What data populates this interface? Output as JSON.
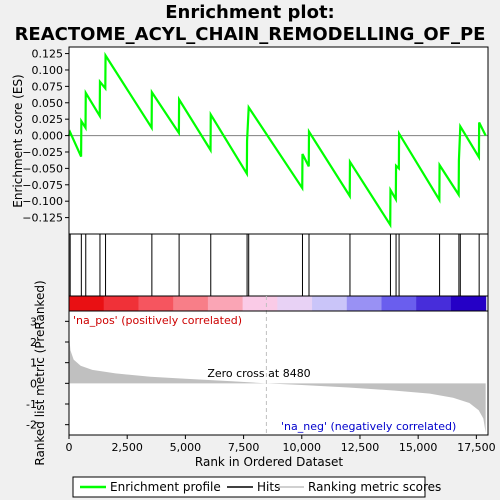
{
  "chart_data": {
    "type": "line",
    "title_line1": "Enrichment plot:",
    "title_line2": "REACTOME_ACYL_CHAIN_REMODELLING_OF_PE",
    "x_label": "Rank in Ordered Dataset",
    "es_ylabel": "Enrichment score (ES)",
    "metric_ylabel": "Ranked list metric (PreRanked)",
    "xlim": [
      0,
      18000
    ],
    "es_ylim": [
      -0.15,
      0.135
    ],
    "metric_ylim": [
      -2.5,
      3.5
    ],
    "x_ticks": [
      0,
      2500,
      5000,
      7500,
      10000,
      12500,
      15000,
      17500
    ],
    "x_tick_labels": [
      "0",
      "2,500",
      "5,000",
      "7,500",
      "10,000",
      "12,500",
      "15,000",
      "17,500"
    ],
    "es_ticks": [
      -0.125,
      -0.1,
      -0.075,
      -0.05,
      -0.025,
      0,
      0.025,
      0.05,
      0.075,
      0.1,
      0.125
    ],
    "es_tick_labels": [
      "−0.125",
      "−0.100",
      "−0.075",
      "−0.050",
      "−0.025",
      "0.000",
      "0.025",
      "0.050",
      "0.075",
      "0.100",
      "0.125"
    ],
    "metric_ticks": [
      -2,
      -1,
      0,
      1,
      2,
      3
    ],
    "metric_tick_labels": [
      "-2",
      "-1",
      "0",
      "1",
      "2",
      "3"
    ],
    "n_genes": 17900,
    "zero_cross_rank": 8480,
    "zero_cross_text": "Zero cross at 8480",
    "pos_label": "'na_pos' (positively correlated)",
    "neg_label": "'na_neg' (negatively correlated)",
    "hits": [
      50,
      530,
      720,
      1330,
      1570,
      3560,
      4730,
      6090,
      7650,
      7720,
      10030,
      10310,
      12070,
      13810,
      14050,
      14180,
      15920,
      16750,
      16810,
      17620
    ],
    "es_series": [
      {
        "x": 0,
        "y": 0.0
      },
      {
        "x": 50,
        "y": 0.005
      },
      {
        "x": 520,
        "y": -0.032
      },
      {
        "x": 530,
        "y": 0.022
      },
      {
        "x": 710,
        "y": 0.012
      },
      {
        "x": 720,
        "y": 0.065
      },
      {
        "x": 1320,
        "y": 0.03
      },
      {
        "x": 1330,
        "y": 0.082
      },
      {
        "x": 1560,
        "y": 0.072
      },
      {
        "x": 1570,
        "y": 0.122
      },
      {
        "x": 3550,
        "y": 0.012
      },
      {
        "x": 3560,
        "y": 0.066
      },
      {
        "x": 4720,
        "y": 0.004
      },
      {
        "x": 4730,
        "y": 0.055
      },
      {
        "x": 6080,
        "y": -0.022
      },
      {
        "x": 6090,
        "y": 0.032
      },
      {
        "x": 7640,
        "y": -0.058
      },
      {
        "x": 7650,
        "y": -0.008
      },
      {
        "x": 7720,
        "y": 0.043
      },
      {
        "x": 10020,
        "y": -0.08
      },
      {
        "x": 10030,
        "y": -0.028
      },
      {
        "x": 10300,
        "y": -0.047
      },
      {
        "x": 10310,
        "y": 0.006
      },
      {
        "x": 12060,
        "y": -0.092
      },
      {
        "x": 12070,
        "y": -0.04
      },
      {
        "x": 13800,
        "y": -0.136
      },
      {
        "x": 13810,
        "y": -0.083
      },
      {
        "x": 14040,
        "y": -0.097
      },
      {
        "x": 14050,
        "y": -0.046
      },
      {
        "x": 14170,
        "y": -0.05
      },
      {
        "x": 14180,
        "y": 0.003
      },
      {
        "x": 15910,
        "y": -0.098
      },
      {
        "x": 15920,
        "y": -0.045
      },
      {
        "x": 16740,
        "y": -0.09
      },
      {
        "x": 16750,
        "y": -0.038
      },
      {
        "x": 16810,
        "y": 0.014
      },
      {
        "x": 17610,
        "y": -0.033
      },
      {
        "x": 17620,
        "y": 0.02
      },
      {
        "x": 17900,
        "y": 0.0
      }
    ],
    "metric_curve": [
      {
        "x": 0,
        "y": 2.4
      },
      {
        "x": 60,
        "y": 1.6
      },
      {
        "x": 200,
        "y": 1.15
      },
      {
        "x": 500,
        "y": 0.85
      },
      {
        "x": 1000,
        "y": 0.65
      },
      {
        "x": 2000,
        "y": 0.48
      },
      {
        "x": 3500,
        "y": 0.32
      },
      {
        "x": 5000,
        "y": 0.22
      },
      {
        "x": 7000,
        "y": 0.1
      },
      {
        "x": 8480,
        "y": 0.0
      },
      {
        "x": 10000,
        "y": -0.08
      },
      {
        "x": 12000,
        "y": -0.2
      },
      {
        "x": 14000,
        "y": -0.35
      },
      {
        "x": 15500,
        "y": -0.5
      },
      {
        "x": 16500,
        "y": -0.7
      },
      {
        "x": 17200,
        "y": -0.95
      },
      {
        "x": 17600,
        "y": -1.3
      },
      {
        "x": 17800,
        "y": -1.7
      },
      {
        "x": 17900,
        "y": -2.4
      }
    ],
    "colors": {
      "es_line": "#00ff00",
      "hit": "#000000",
      "metric_fill": "#c0c0c0",
      "zero_line": "#c0c0c0",
      "pos_text": "#cc0000",
      "neg_text": "#0000cc",
      "frame_bg": "#f0f0f0",
      "plot_bg": "#ffffff"
    },
    "legend": {
      "items": [
        {
          "label": "Enrichment profile",
          "kind": "line",
          "color": "#00ff00"
        },
        {
          "label": "Hits",
          "kind": "line",
          "color": "#000000"
        },
        {
          "label": "Ranking metric scores",
          "kind": "line",
          "color": "#c0c0c0"
        }
      ]
    }
  }
}
